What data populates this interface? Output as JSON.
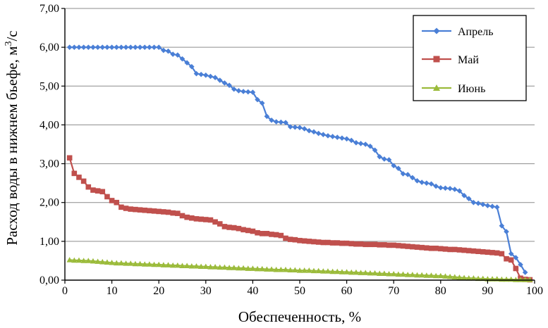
{
  "chart_data": {
    "type": "line",
    "title": "",
    "xlabel": "Обеспеченность, %",
    "ylabel_main": "Расход воды в нижнем бьефе, м",
    "ylabel_sup": "3",
    "ylabel_tail": "/с",
    "xlim": [
      0,
      100
    ],
    "ylim": [
      0,
      7
    ],
    "x_ticks": [
      0,
      10,
      20,
      30,
      40,
      50,
      60,
      70,
      80,
      90,
      100
    ],
    "x_tick_labels": [
      "0",
      "10",
      "20",
      "30",
      "40",
      "50",
      "60",
      "70",
      "80",
      "90",
      "100"
    ],
    "y_ticks": [
      0,
      1,
      2,
      3,
      4,
      5,
      6,
      7
    ],
    "y_tick_labels": [
      "0,00",
      "1,00",
      "2,00",
      "3,00",
      "4,00",
      "5,00",
      "6,00",
      "7,00"
    ],
    "legend_position": "top-right",
    "series": [
      {
        "name": "Апрель",
        "color": "#4a7fd6",
        "marker": "diamond",
        "x": [
          1,
          2,
          3,
          4,
          5,
          6,
          7,
          8,
          9,
          10,
          11,
          12,
          13,
          14,
          15,
          16,
          17,
          18,
          19,
          20,
          21,
          22,
          23,
          24,
          25,
          26,
          27,
          28,
          29,
          30,
          31,
          32,
          33,
          34,
          35,
          36,
          37,
          38,
          39,
          40,
          41,
          42,
          43,
          44,
          45,
          46,
          47,
          48,
          49,
          50,
          51,
          52,
          53,
          54,
          55,
          56,
          57,
          58,
          59,
          60,
          61,
          62,
          63,
          64,
          65,
          66,
          67,
          68,
          69,
          70,
          71,
          72,
          73,
          74,
          75,
          76,
          77,
          78,
          79,
          80,
          81,
          82,
          83,
          84,
          85,
          86,
          87,
          88,
          89,
          90,
          91,
          92,
          93,
          94,
          95,
          96,
          97,
          98
        ],
        "values": [
          6.0,
          6.0,
          6.0,
          6.0,
          6.0,
          6.0,
          6.0,
          6.0,
          6.0,
          6.0,
          6.0,
          6.0,
          6.0,
          6.0,
          6.0,
          6.0,
          6.0,
          6.0,
          6.0,
          6.0,
          5.92,
          5.9,
          5.82,
          5.8,
          5.7,
          5.6,
          5.5,
          5.32,
          5.3,
          5.28,
          5.25,
          5.22,
          5.15,
          5.08,
          5.02,
          4.92,
          4.88,
          4.86,
          4.85,
          4.84,
          4.65,
          4.56,
          4.22,
          4.12,
          4.08,
          4.07,
          4.06,
          3.95,
          3.94,
          3.93,
          3.9,
          3.85,
          3.82,
          3.78,
          3.75,
          3.72,
          3.7,
          3.68,
          3.66,
          3.64,
          3.6,
          3.54,
          3.52,
          3.5,
          3.45,
          3.35,
          3.18,
          3.12,
          3.1,
          2.95,
          2.88,
          2.74,
          2.72,
          2.64,
          2.56,
          2.52,
          2.5,
          2.48,
          2.42,
          2.38,
          2.37,
          2.36,
          2.34,
          2.3,
          2.18,
          2.1,
          2.0,
          1.98,
          1.95,
          1.92,
          1.9,
          1.88,
          1.4,
          1.25,
          0.68,
          0.58,
          0.4,
          0.2
        ]
      },
      {
        "name": "Май",
        "color": "#c0504d",
        "marker": "square",
        "x": [
          1,
          2,
          3,
          4,
          5,
          6,
          7,
          8,
          9,
          10,
          11,
          12,
          13,
          14,
          15,
          16,
          17,
          18,
          19,
          20,
          21,
          22,
          23,
          24,
          25,
          26,
          27,
          28,
          29,
          30,
          31,
          32,
          33,
          34,
          35,
          36,
          37,
          38,
          39,
          40,
          41,
          42,
          43,
          44,
          45,
          46,
          47,
          48,
          49,
          50,
          51,
          52,
          53,
          54,
          55,
          56,
          57,
          58,
          59,
          60,
          61,
          62,
          63,
          64,
          65,
          66,
          67,
          68,
          69,
          70,
          71,
          72,
          73,
          74,
          75,
          76,
          77,
          78,
          79,
          80,
          81,
          82,
          83,
          84,
          85,
          86,
          87,
          88,
          89,
          90,
          91,
          92,
          93,
          94,
          95,
          96,
          97,
          98,
          99
        ],
        "values": [
          3.15,
          2.75,
          2.65,
          2.55,
          2.4,
          2.32,
          2.3,
          2.28,
          2.15,
          2.05,
          2.0,
          1.88,
          1.85,
          1.83,
          1.82,
          1.81,
          1.8,
          1.79,
          1.78,
          1.77,
          1.76,
          1.75,
          1.73,
          1.72,
          1.66,
          1.62,
          1.6,
          1.58,
          1.57,
          1.56,
          1.55,
          1.5,
          1.45,
          1.38,
          1.36,
          1.35,
          1.33,
          1.3,
          1.28,
          1.26,
          1.22,
          1.2,
          1.2,
          1.18,
          1.17,
          1.15,
          1.08,
          1.05,
          1.04,
          1.02,
          1.01,
          1.0,
          0.99,
          0.98,
          0.97,
          0.97,
          0.96,
          0.96,
          0.95,
          0.95,
          0.94,
          0.93,
          0.93,
          0.92,
          0.92,
          0.92,
          0.91,
          0.91,
          0.9,
          0.9,
          0.89,
          0.88,
          0.87,
          0.86,
          0.85,
          0.84,
          0.83,
          0.82,
          0.82,
          0.81,
          0.8,
          0.79,
          0.79,
          0.78,
          0.77,
          0.76,
          0.75,
          0.74,
          0.73,
          0.72,
          0.71,
          0.7,
          0.68,
          0.55,
          0.52,
          0.3,
          0.05,
          0.02,
          0.01
        ]
      },
      {
        "name": "Июнь",
        "color": "#9bbb3b",
        "marker": "triangle",
        "x": [
          1,
          2,
          3,
          4,
          5,
          6,
          7,
          8,
          9,
          10,
          11,
          12,
          13,
          14,
          15,
          16,
          17,
          18,
          19,
          20,
          21,
          22,
          23,
          24,
          25,
          26,
          27,
          28,
          29,
          30,
          31,
          32,
          33,
          34,
          35,
          36,
          37,
          38,
          39,
          40,
          41,
          42,
          43,
          44,
          45,
          46,
          47,
          48,
          49,
          50,
          51,
          52,
          53,
          54,
          55,
          56,
          57,
          58,
          59,
          60,
          61,
          62,
          63,
          64,
          65,
          66,
          67,
          68,
          69,
          70,
          71,
          72,
          73,
          74,
          75,
          76,
          77,
          78,
          79,
          80,
          81,
          82,
          83,
          84,
          85,
          86,
          87,
          88,
          89,
          90,
          91,
          92,
          93,
          94,
          95,
          96,
          97,
          98,
          99
        ],
        "values": [
          0.52,
          0.51,
          0.51,
          0.5,
          0.5,
          0.49,
          0.48,
          0.47,
          0.46,
          0.45,
          0.44,
          0.44,
          0.43,
          0.43,
          0.42,
          0.42,
          0.41,
          0.41,
          0.4,
          0.4,
          0.39,
          0.39,
          0.38,
          0.38,
          0.37,
          0.37,
          0.36,
          0.36,
          0.35,
          0.35,
          0.34,
          0.34,
          0.33,
          0.33,
          0.32,
          0.32,
          0.31,
          0.31,
          0.3,
          0.3,
          0.29,
          0.29,
          0.28,
          0.28,
          0.27,
          0.27,
          0.27,
          0.26,
          0.26,
          0.25,
          0.25,
          0.25,
          0.24,
          0.24,
          0.23,
          0.23,
          0.22,
          0.22,
          0.21,
          0.21,
          0.2,
          0.2,
          0.19,
          0.19,
          0.18,
          0.18,
          0.17,
          0.17,
          0.16,
          0.16,
          0.15,
          0.15,
          0.14,
          0.14,
          0.13,
          0.13,
          0.12,
          0.12,
          0.11,
          0.11,
          0.1,
          0.09,
          0.08,
          0.07,
          0.06,
          0.05,
          0.05,
          0.04,
          0.04,
          0.03,
          0.03,
          0.03,
          0.02,
          0.02,
          0.02,
          0.01,
          0.01,
          0.01,
          0.01
        ]
      }
    ]
  }
}
